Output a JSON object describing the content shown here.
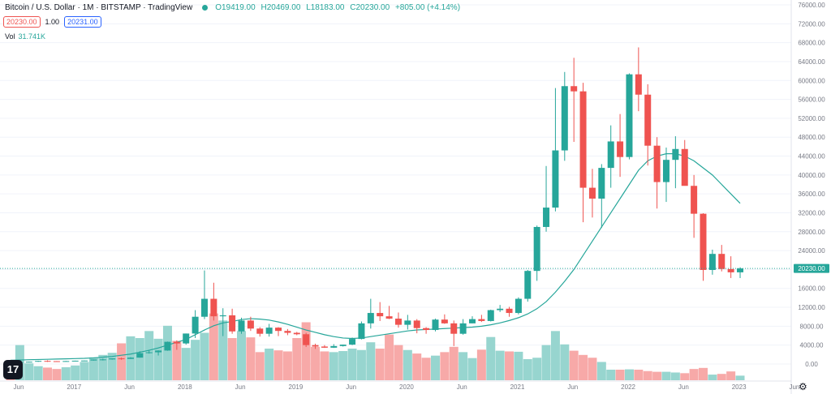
{
  "header": {
    "title": "Bitcoin / U.S. Dollar · 1M · BITSTAMP · TradingView",
    "open": "O19419.00",
    "high": "H20469.00",
    "low": "L18183.00",
    "close": "C20230.00",
    "change": "+805.00 (+4.14%)"
  },
  "order": {
    "sell_price": "20230.00",
    "spread": "1.00",
    "buy_price": "20231.00"
  },
  "volume": {
    "label": "Vol",
    "value": "31.741K"
  },
  "last_price_label": "20230.00",
  "colors": {
    "up": "#26a69a",
    "down": "#ef5350",
    "vol_up": "#97d5cf",
    "vol_down": "#f7a9a8",
    "ma": "#26a69a"
  },
  "chart_data": {
    "type": "candlestick",
    "symbol": "BTCUSD",
    "interval": "1M",
    "ylim": [
      0,
      76000
    ],
    "y_ticks": [
      "76000.00",
      "72000.00",
      "68000.00",
      "64000.00",
      "60000.00",
      "56000.00",
      "52000.00",
      "48000.00",
      "44000.00",
      "40000.00",
      "36000.00",
      "32000.00",
      "28000.00",
      "24000.00",
      "20000.00",
      "16000.00",
      "12000.00",
      "8000.00",
      "4000.00",
      "0.00"
    ],
    "x_ticks": [
      "Jun",
      "2017",
      "Jun",
      "2018",
      "Jun",
      "2019",
      "Jun",
      "2020",
      "Jun",
      "2021",
      "Jun",
      "2022",
      "Jun",
      "2023",
      "Jun"
    ],
    "candles": [
      {
        "o": 440,
        "h": 460,
        "l": 420,
        "c": 430
      },
      {
        "o": 430,
        "h": 450,
        "l": 410,
        "c": 440
      },
      {
        "o": 440,
        "h": 500,
        "l": 430,
        "c": 480
      },
      {
        "o": 480,
        "h": 700,
        "l": 470,
        "c": 650
      },
      {
        "o": 650,
        "h": 780,
        "l": 450,
        "c": 600
      },
      {
        "o": 600,
        "h": 620,
        "l": 540,
        "c": 580
      },
      {
        "o": 580,
        "h": 650,
        "l": 560,
        "c": 620
      },
      {
        "o": 620,
        "h": 710,
        "l": 590,
        "c": 700
      },
      {
        "o": 700,
        "h": 750,
        "l": 690,
        "c": 740
      },
      {
        "o": 740,
        "h": 960,
        "l": 720,
        "c": 960
      },
      {
        "o": 960,
        "h": 1150,
        "l": 750,
        "c": 970
      },
      {
        "o": 970,
        "h": 1200,
        "l": 920,
        "c": 1190
      },
      {
        "o": 1190,
        "h": 1350,
        "l": 890,
        "c": 1080
      },
      {
        "o": 1080,
        "h": 1450,
        "l": 1070,
        "c": 1350
      },
      {
        "o": 1350,
        "h": 2700,
        "l": 1340,
        "c": 2300
      },
      {
        "o": 2300,
        "h": 2980,
        "l": 2200,
        "c": 2480
      },
      {
        "o": 2480,
        "h": 2900,
        "l": 1800,
        "c": 2850
      },
      {
        "o": 2850,
        "h": 4750,
        "l": 2800,
        "c": 4700
      },
      {
        "o": 4700,
        "h": 5000,
        "l": 3000,
        "c": 4350
      },
      {
        "o": 4350,
        "h": 6450,
        "l": 4100,
        "c": 6450
      },
      {
        "o": 6450,
        "h": 11400,
        "l": 5500,
        "c": 10000
      },
      {
        "o": 10000,
        "h": 19800,
        "l": 9500,
        "c": 13800
      },
      {
        "o": 13800,
        "h": 17200,
        "l": 9200,
        "c": 10100
      },
      {
        "o": 10100,
        "h": 11800,
        "l": 5900,
        "c": 10300
      },
      {
        "o": 10300,
        "h": 11700,
        "l": 6400,
        "c": 6900
      },
      {
        "o": 6900,
        "h": 9800,
        "l": 6400,
        "c": 9200
      },
      {
        "o": 9200,
        "h": 10000,
        "l": 7000,
        "c": 7500
      },
      {
        "o": 7500,
        "h": 7800,
        "l": 5800,
        "c": 6400
      },
      {
        "o": 6400,
        "h": 8500,
        "l": 5800,
        "c": 7700
      },
      {
        "o": 7700,
        "h": 7800,
        "l": 5900,
        "c": 7000
      },
      {
        "o": 7000,
        "h": 7400,
        "l": 6100,
        "c": 6600
      },
      {
        "o": 6600,
        "h": 6800,
        "l": 6100,
        "c": 6300
      },
      {
        "o": 6300,
        "h": 6600,
        "l": 3600,
        "c": 4000
      },
      {
        "o": 4000,
        "h": 4300,
        "l": 3200,
        "c": 3700
      },
      {
        "o": 3700,
        "h": 4000,
        "l": 3400,
        "c": 3450
      },
      {
        "o": 3450,
        "h": 4200,
        "l": 3400,
        "c": 3800
      },
      {
        "o": 3800,
        "h": 4100,
        "l": 3700,
        "c": 4100
      },
      {
        "o": 4100,
        "h": 5600,
        "l": 4000,
        "c": 5300
      },
      {
        "o": 5300,
        "h": 9000,
        "l": 5200,
        "c": 8600
      },
      {
        "o": 8600,
        "h": 13800,
        "l": 7500,
        "c": 10800
      },
      {
        "o": 10800,
        "h": 13100,
        "l": 9100,
        "c": 10100
      },
      {
        "o": 10100,
        "h": 12300,
        "l": 9500,
        "c": 9600
      },
      {
        "o": 9600,
        "h": 10900,
        "l": 7700,
        "c": 8300
      },
      {
        "o": 8300,
        "h": 10400,
        "l": 7300,
        "c": 9200
      },
      {
        "o": 9200,
        "h": 9500,
        "l": 6500,
        "c": 7600
      },
      {
        "o": 7600,
        "h": 7800,
        "l": 6400,
        "c": 7200
      },
      {
        "o": 7200,
        "h": 9600,
        "l": 6900,
        "c": 9400
      },
      {
        "o": 9400,
        "h": 10500,
        "l": 8500,
        "c": 8600
      },
      {
        "o": 8600,
        "h": 9200,
        "l": 3800,
        "c": 6400
      },
      {
        "o": 6400,
        "h": 9500,
        "l": 6200,
        "c": 8600
      },
      {
        "o": 8600,
        "h": 10100,
        "l": 8600,
        "c": 9500
      },
      {
        "o": 9500,
        "h": 10400,
        "l": 8900,
        "c": 9100
      },
      {
        "o": 9100,
        "h": 11500,
        "l": 9000,
        "c": 11400
      },
      {
        "o": 11400,
        "h": 12500,
        "l": 11000,
        "c": 11700
      },
      {
        "o": 11700,
        "h": 12100,
        "l": 10000,
        "c": 10800
      },
      {
        "o": 10800,
        "h": 14100,
        "l": 10500,
        "c": 13800
      },
      {
        "o": 13800,
        "h": 19900,
        "l": 13200,
        "c": 19700
      },
      {
        "o": 19700,
        "h": 29300,
        "l": 17600,
        "c": 29000
      },
      {
        "o": 29000,
        "h": 41900,
        "l": 28000,
        "c": 33100
      },
      {
        "o": 33100,
        "h": 58400,
        "l": 32300,
        "c": 45200
      },
      {
        "o": 45200,
        "h": 61800,
        "l": 43000,
        "c": 58800
      },
      {
        "o": 58800,
        "h": 64800,
        "l": 47000,
        "c": 57700
      },
      {
        "o": 57700,
        "h": 59500,
        "l": 30000,
        "c": 37300
      },
      {
        "o": 37300,
        "h": 41300,
        "l": 31000,
        "c": 35000
      },
      {
        "o": 35000,
        "h": 42300,
        "l": 28800,
        "c": 41500
      },
      {
        "o": 41500,
        "h": 50500,
        "l": 37300,
        "c": 47100
      },
      {
        "o": 47100,
        "h": 52900,
        "l": 39600,
        "c": 43800
      },
      {
        "o": 43800,
        "h": 61500,
        "l": 43300,
        "c": 61300
      },
      {
        "o": 61300,
        "h": 67000,
        "l": 53500,
        "c": 57000
      },
      {
        "o": 57000,
        "h": 59200,
        "l": 42000,
        "c": 46200
      },
      {
        "o": 46200,
        "h": 48000,
        "l": 32900,
        "c": 38500
      },
      {
        "o": 38500,
        "h": 45800,
        "l": 34300,
        "c": 43200
      },
      {
        "o": 43200,
        "h": 48200,
        "l": 37200,
        "c": 45500
      },
      {
        "o": 45500,
        "h": 47400,
        "l": 37800,
        "c": 37700
      },
      {
        "o": 37700,
        "h": 40000,
        "l": 26700,
        "c": 31800
      },
      {
        "o": 31800,
        "h": 31900,
        "l": 17600,
        "c": 19900
      },
      {
        "o": 19900,
        "h": 24200,
        "l": 18900,
        "c": 23300
      },
      {
        "o": 23300,
        "h": 25200,
        "l": 19600,
        "c": 20100
      },
      {
        "o": 20100,
        "h": 22800,
        "l": 18200,
        "c": 19400
      },
      {
        "o": 19400,
        "h": 20469,
        "l": 18183,
        "c": 20230
      }
    ],
    "volume_max": 30000,
    "volumes": [
      5200,
      10000,
      4800,
      4000,
      3600,
      3200,
      3700,
      4200,
      5200,
      6500,
      7200,
      7800,
      10500,
      12500,
      12000,
      14000,
      11800,
      15500,
      11200,
      9200,
      11500,
      13500,
      19000,
      17000,
      12000,
      14000,
      12200,
      8000,
      9000,
      8500,
      8200,
      12000,
      16500,
      9500,
      8200,
      8000,
      8300,
      9000,
      8600,
      10800,
      9000,
      13000,
      10000,
      8600,
      7600,
      6400,
      7000,
      8000,
      9500,
      8000,
      6300,
      8700,
      12300,
      8400,
      8200,
      8100,
      6000,
      6400,
      10000,
      14000,
      10200,
      8400,
      7200,
      6400,
      5200,
      3000,
      3000,
      3100,
      3000,
      2600,
      2400,
      2400,
      2200,
      2000,
      3200,
      3500,
      1600,
      1800,
      2500,
      1300
    ],
    "ma_line": [
      800,
      850,
      900,
      950,
      1000,
      1050,
      1100,
      1150,
      1200,
      1300,
      1450,
      1600,
      1850,
      2100,
      2500,
      2900,
      3400,
      4000,
      4600,
      5200,
      6200,
      7200,
      8100,
      8700,
      9000,
      9400,
      9600,
      9500,
      9300,
      8900,
      8400,
      7800,
      7200,
      6700,
      6200,
      5800,
      5500,
      5400,
      5500,
      5800,
      6100,
      6400,
      6700,
      7000,
      7200,
      7300,
      7400,
      7500,
      7600,
      7700,
      7800,
      8000,
      8300,
      8700,
      9200,
      9800,
      10600,
      11700,
      13200,
      15200,
      17500,
      20000,
      23000,
      26000,
      29000,
      32000,
      35000,
      38000,
      41000,
      43000,
      44000,
      44500,
      44500,
      44000,
      43000,
      41500,
      40000,
      38000,
      36000,
      34000
    ]
  }
}
